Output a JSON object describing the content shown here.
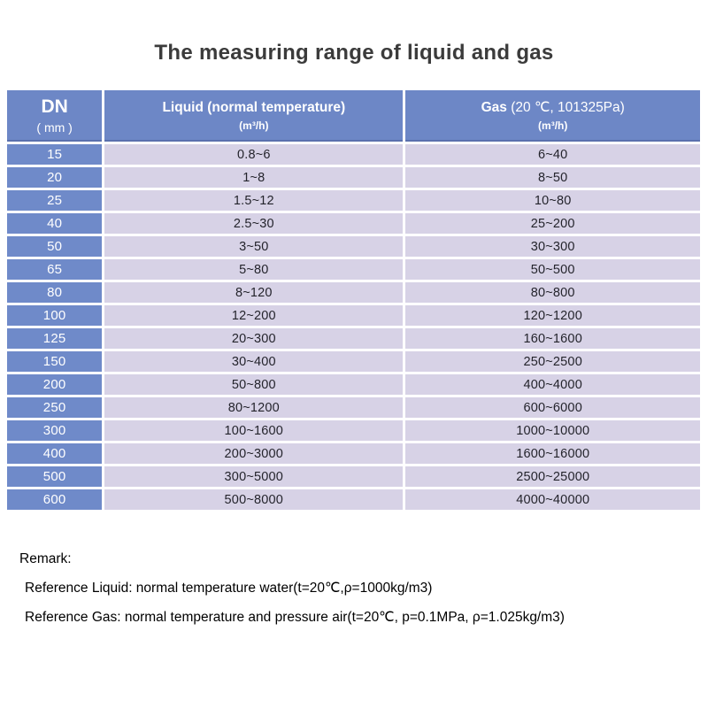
{
  "title": "The measuring range of liquid and gas",
  "colors": {
    "header_blue": "#6d87c6",
    "dn_blue": "#6f8ac9",
    "row_lavender": "#d7d2e6",
    "header_edge": "#5a70ad",
    "title_color": "#3b3b3b"
  },
  "table": {
    "header": {
      "dn": {
        "label": "DN",
        "unit": "( mm )"
      },
      "liquid": {
        "label": "Liquid (normal temperature)",
        "unit": "(m³/h)"
      },
      "gas": {
        "label": "Gas",
        "condition": "(20 ℃, 101325Pa)",
        "unit": "(m³/h)"
      }
    },
    "rows": [
      {
        "dn": "15",
        "liquid": "0.8~6",
        "gas": "6~40"
      },
      {
        "dn": "20",
        "liquid": "1~8",
        "gas": "8~50"
      },
      {
        "dn": "25",
        "liquid": "1.5~12",
        "gas": "10~80"
      },
      {
        "dn": "40",
        "liquid": "2.5~30",
        "gas": "25~200"
      },
      {
        "dn": "50",
        "liquid": "3~50",
        "gas": "30~300"
      },
      {
        "dn": "65",
        "liquid": "5~80",
        "gas": "50~500"
      },
      {
        "dn": "80",
        "liquid": "8~120",
        "gas": "80~800"
      },
      {
        "dn": "100",
        "liquid": "12~200",
        "gas": "120~1200"
      },
      {
        "dn": "125",
        "liquid": "20~300",
        "gas": "160~1600"
      },
      {
        "dn": "150",
        "liquid": "30~400",
        "gas": "250~2500"
      },
      {
        "dn": "200",
        "liquid": "50~800",
        "gas": "400~4000"
      },
      {
        "dn": "250",
        "liquid": "80~1200",
        "gas": "600~6000"
      },
      {
        "dn": "300",
        "liquid": "100~1600",
        "gas": "1000~10000"
      },
      {
        "dn": "400",
        "liquid": "200~3000",
        "gas": "1600~16000"
      },
      {
        "dn": "500",
        "liquid": "300~5000",
        "gas": "2500~25000"
      },
      {
        "dn": "600",
        "liquid": "500~8000",
        "gas": "4000~40000"
      }
    ]
  },
  "remark": {
    "title": "Remark:",
    "lines": [
      "Reference Liquid: normal temperature water(t=20℃,ρ=1000kg/m3)",
      "Reference Gas: normal temperature and pressure air(t=20℃, p=0.1MPa, ρ=1.025kg/m3)"
    ]
  }
}
